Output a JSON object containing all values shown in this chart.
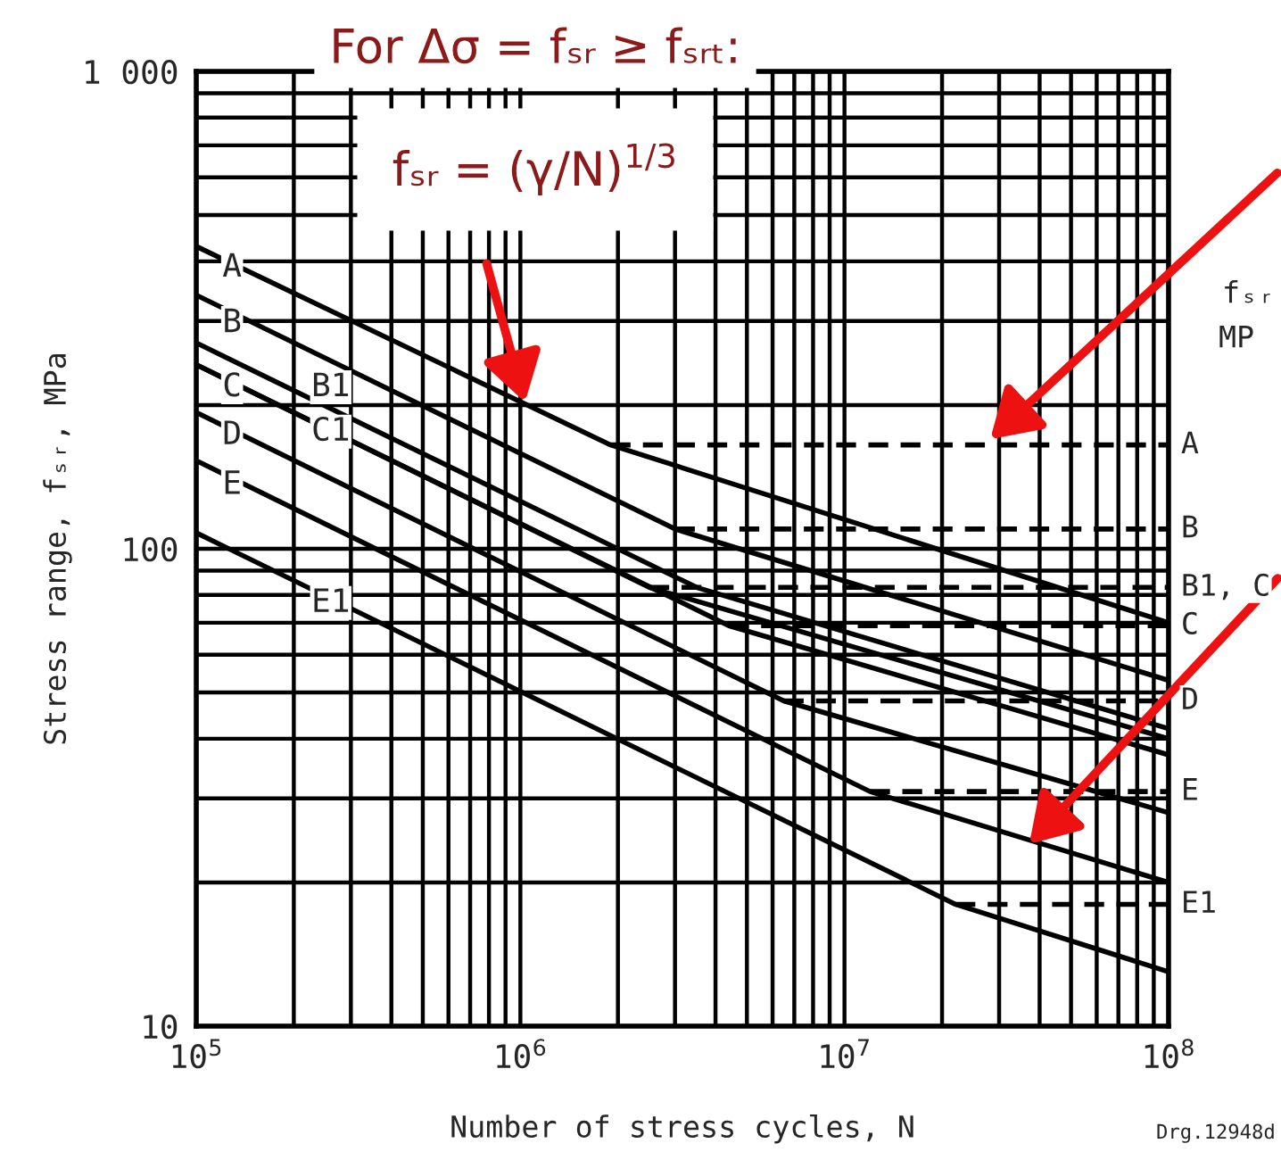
{
  "chart_data": {
    "type": "line",
    "title": "For Δσ = fₛᵣ ≥ fₛᵣₜ:",
    "subtitle": "fₛᵣ = (γ/N)$^{1/3}$",
    "xlabel": "Number of stress cycles, N",
    "ylabel": "Stress range, fₛᵣ, MPa",
    "log": "xy",
    "grid": true,
    "legend": false,
    "marker": "none",
    "line_style": "solid",
    "xlim": [
      100000,
      100000000
    ],
    "ylim": [
      10,
      1000
    ],
    "xticks": [
      {
        "value": 100000,
        "label": "10$^{5}$"
      },
      {
        "value": 1000000,
        "label": "10$^{6}$"
      },
      {
        "value": 10000000,
        "label": "10$^{7}$"
      },
      {
        "value": 100000000,
        "label": "10$^{8}$"
      }
    ],
    "yticks": [
      10,
      100,
      {
        "value": 1000,
        "label": "1 000"
      }
    ],
    "series": [
      {
        "color": "#000000",
        "x": [
          100000,
          1900000,
          100000000
        ],
        "values": [
          430,
          165,
          70
        ]
      },
      {
        "color": "#000000",
        "x": [
          100000,
          3000000,
          100000000
        ],
        "values": [
          340,
          110,
          53
        ]
      },
      {
        "color": "#000000",
        "x": [
          100000,
          3500000,
          100000000
        ],
        "values": [
          270,
          83,
          42
        ]
      },
      {
        "color": "#000000",
        "x": [
          100000,
          2500000,
          100000000
        ],
        "values": [
          243,
          83,
          40
        ]
      },
      {
        "color": "#000000",
        "x": [
          100000,
          4400000,
          100000000
        ],
        "values": [
          243,
          69,
          37
        ]
      },
      {
        "color": "#000000",
        "x": [
          100000,
          6500000,
          100000000
        ],
        "values": [
          193,
          48,
          28
        ]
      },
      {
        "color": "#000000",
        "x": [
          100000,
          12000000,
          100000000
        ],
        "values": [
          153,
          31,
          20
        ]
      },
      {
        "color": "#000000",
        "x": [
          100000,
          22000000,
          100000000
        ],
        "values": [
          108,
          18,
          13
        ]
      },
      {
        "color": "#000000",
        "line_style": "dashed",
        "x": [
          1900000,
          100000000
        ],
        "values": [
          165,
          165
        ]
      },
      {
        "color": "#000000",
        "line_style": "dashed",
        "x": [
          3000000,
          100000000
        ],
        "values": [
          110,
          110
        ]
      },
      {
        "color": "#000000",
        "line_style": "dashed",
        "x": [
          2500000,
          100000000
        ],
        "values": [
          83,
          83
        ]
      },
      {
        "color": "#000000",
        "line_style": "dashed",
        "x": [
          4400000,
          100000000
        ],
        "values": [
          69,
          69
        ]
      },
      {
        "color": "#000000",
        "line_style": "dashed",
        "x": [
          6500000,
          100000000
        ],
        "values": [
          48,
          48
        ]
      },
      {
        "color": "#000000",
        "line_style": "dashed",
        "x": [
          12000000,
          100000000
        ],
        "values": [
          31,
          31
        ]
      },
      {
        "color": "#000000",
        "line_style": "dashed",
        "x": [
          22000000,
          100000000
        ],
        "values": [
          18,
          18
        ]
      }
    ],
    "annotations": [
      {
        "text": "A",
        "x": 129000,
        "y": 388
      },
      {
        "text": "B",
        "x": 129000,
        "y": 297
      },
      {
        "text": "C",
        "x": 129000,
        "y": 218
      },
      {
        "text": "B1",
        "x": 260000,
        "y": 218
      },
      {
        "text": "C1",
        "x": 260000,
        "y": 176
      },
      {
        "text": "D",
        "x": 129000,
        "y": 173
      },
      {
        "text": "E",
        "x": 129000,
        "y": 136
      },
      {
        "text": "E1",
        "x": 260000,
        "y": 77
      },
      {
        "text": "A",
        "x": 100000000,
        "y": 165
      },
      {
        "text": "B",
        "x": 100000000,
        "y": 110
      },
      {
        "text": "B1, C",
        "x": 100000000,
        "y": 83
      },
      {
        "text": "C",
        "x": 100000000,
        "y": 69
      },
      {
        "text": "D",
        "x": 100000000,
        "y": 48
      },
      {
        "text": "E",
        "x": 100000000,
        "y": 31
      },
      {
        "text": "E1",
        "x": 100000000,
        "y": 18
      },
      "fₛᵣ",
      "MP",
      "Drg.12948d"
    ]
  }
}
